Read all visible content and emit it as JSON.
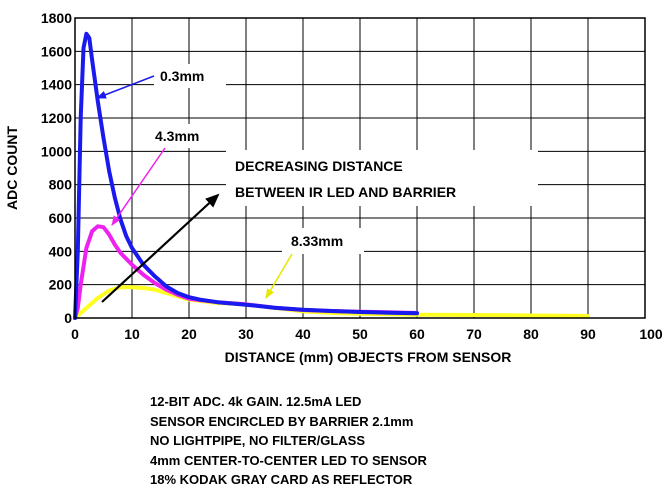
{
  "chart_data": {
    "type": "line",
    "xlabel": "DISTANCE (mm) OBJECTS FROM SENSOR",
    "ylabel": "ADC COUNT",
    "xlim": [
      0,
      100
    ],
    "ylim": [
      0,
      1800
    ],
    "x_ticks": [
      0,
      10,
      20,
      30,
      40,
      50,
      60,
      70,
      80,
      90,
      100
    ],
    "y_ticks": [
      0,
      200,
      400,
      600,
      800,
      1000,
      1200,
      1400,
      1600,
      1800
    ],
    "grid": true,
    "series": [
      {
        "name": "0.3mm",
        "color": "#1a1aee",
        "points": [
          [
            0,
            0
          ],
          [
            0.5,
            400
          ],
          [
            1,
            1200
          ],
          [
            1.5,
            1620
          ],
          [
            2,
            1705
          ],
          [
            2.5,
            1680
          ],
          [
            3,
            1550
          ],
          [
            4,
            1300
          ],
          [
            5,
            1080
          ],
          [
            6,
            880
          ],
          [
            7,
            720
          ],
          [
            8,
            590
          ],
          [
            9,
            490
          ],
          [
            10,
            420
          ],
          [
            12,
            320
          ],
          [
            14,
            250
          ],
          [
            16,
            190
          ],
          [
            18,
            150
          ],
          [
            20,
            125
          ],
          [
            22,
            110
          ],
          [
            25,
            95
          ],
          [
            30,
            80
          ],
          [
            35,
            62
          ],
          [
            40,
            50
          ],
          [
            45,
            42
          ],
          [
            50,
            36
          ],
          [
            55,
            32
          ],
          [
            60,
            28
          ]
        ]
      },
      {
        "name": "4.3mm",
        "color": "#ee22ee",
        "points": [
          [
            0,
            0
          ],
          [
            0.5,
            60
          ],
          [
            1,
            200
          ],
          [
            2,
            420
          ],
          [
            3,
            520
          ],
          [
            4,
            550
          ],
          [
            5,
            545
          ],
          [
            6,
            500
          ],
          [
            7,
            440
          ],
          [
            8,
            390
          ],
          [
            10,
            320
          ],
          [
            12,
            260
          ],
          [
            14,
            210
          ],
          [
            16,
            170
          ],
          [
            18,
            140
          ],
          [
            20,
            115
          ],
          [
            25,
            95
          ],
          [
            30,
            82
          ],
          [
            35,
            62
          ],
          [
            40,
            48
          ],
          [
            45,
            42
          ],
          [
            50,
            38
          ],
          [
            55,
            35
          ],
          [
            60,
            30
          ]
        ]
      },
      {
        "name": "8.33mm",
        "color": "#ffff22",
        "points": [
          [
            0,
            0
          ],
          [
            2,
            60
          ],
          [
            4,
            120
          ],
          [
            6,
            165
          ],
          [
            8,
            185
          ],
          [
            10,
            185
          ],
          [
            12,
            180
          ],
          [
            14,
            170
          ],
          [
            16,
            150
          ],
          [
            18,
            130
          ],
          [
            20,
            110
          ],
          [
            25,
            90
          ],
          [
            30,
            82
          ],
          [
            35,
            60
          ],
          [
            40,
            40
          ],
          [
            45,
            30
          ],
          [
            50,
            25
          ],
          [
            60,
            20
          ],
          [
            70,
            18
          ],
          [
            80,
            15
          ],
          [
            90,
            12
          ]
        ]
      }
    ],
    "annotations": [
      "0.3mm",
      "4.3mm",
      "8.33mm",
      "DECREASING DISTANCE",
      "BETWEEN IR LED AND BARRIER"
    ]
  },
  "notes": [
    "12-BIT ADC. 4k GAIN. 12.5mA LED",
    "SENSOR ENCIRCLED BY BARRIER 2.1mm",
    "NO LIGHTPIPE, NO FILTER/GLASS",
    "4mm CENTER-TO-CENTER LED TO SENSOR",
    "18% KODAK GRAY CARD AS REFLECTOR"
  ]
}
